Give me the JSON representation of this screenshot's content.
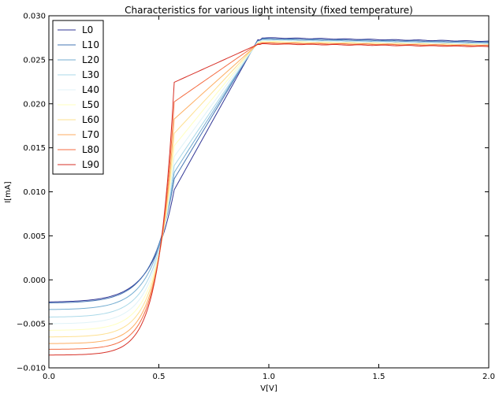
{
  "chart_data": {
    "type": "line",
    "title": "Characteristics for various light intensity (fixed temperature)",
    "xlabel": "V[V]",
    "ylabel": "I[mA]",
    "xlim": [
      0.0,
      2.0
    ],
    "ylim": [
      -0.01,
      0.03
    ],
    "x_ticks": [
      {
        "value": 0.0,
        "label": "0.0"
      },
      {
        "value": 0.5,
        "label": "0.5"
      },
      {
        "value": 1.0,
        "label": "1.0"
      },
      {
        "value": 1.5,
        "label": "1.5"
      },
      {
        "value": 2.0,
        "label": "2.0"
      }
    ],
    "y_ticks": [
      {
        "value": -0.01,
        "label": "−0.010"
      },
      {
        "value": -0.005,
        "label": "−0.005"
      },
      {
        "value": 0.0,
        "label": "0.000"
      },
      {
        "value": 0.005,
        "label": "0.005"
      },
      {
        "value": 0.01,
        "label": "0.010"
      },
      {
        "value": 0.015,
        "label": "0.015"
      },
      {
        "value": 0.02,
        "label": "0.020"
      },
      {
        "value": 0.025,
        "label": "0.025"
      },
      {
        "value": 0.03,
        "label": "0.030"
      }
    ],
    "grid": false,
    "legend_position": "top-left",
    "series": [
      {
        "name": "L0",
        "color": "#313695",
        "y_start": -5e-05,
        "y_end": 0.0275,
        "y_final": 0.0271
      },
      {
        "name": "L10",
        "color": "#4575b4",
        "y_start": -0.0001,
        "y_end": 0.0274,
        "y_final": 0.027
      },
      {
        "name": "L20",
        "color": "#74add1",
        "y_start": -0.0008,
        "y_end": 0.0273,
        "y_final": 0.0269
      },
      {
        "name": "L30",
        "color": "#abd9e9",
        "y_start": -0.0016,
        "y_end": 0.0272,
        "y_final": 0.0268
      },
      {
        "name": "L40",
        "color": "#e0f3f8",
        "y_start": -0.0023,
        "y_end": 0.0272,
        "y_final": 0.0268
      },
      {
        "name": "L50",
        "color": "#ffffbf",
        "y_start": -0.003,
        "y_end": 0.0271,
        "y_final": 0.0267
      },
      {
        "name": "L60",
        "color": "#fee090",
        "y_start": -0.0037,
        "y_end": 0.027,
        "y_final": 0.0267
      },
      {
        "name": "L70",
        "color": "#fdae61",
        "y_start": -0.0044,
        "y_end": 0.0269,
        "y_final": 0.0266
      },
      {
        "name": "L80",
        "color": "#f46d43",
        "y_start": -0.005,
        "y_end": 0.0269,
        "y_final": 0.0266
      },
      {
        "name": "L90",
        "color": "#d73027",
        "y_start": -0.0056,
        "y_end": 0.0268,
        "y_final": 0.0265
      }
    ]
  }
}
